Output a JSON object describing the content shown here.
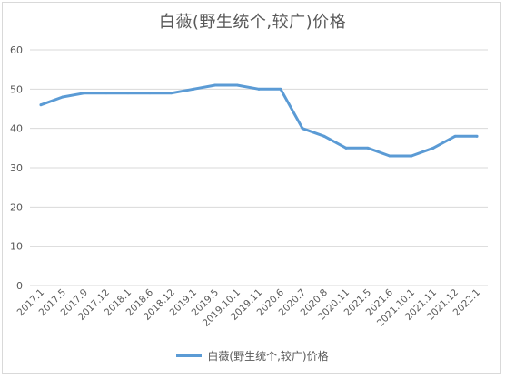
{
  "chart_data": {
    "type": "line",
    "title": "白薇(野生统个,较广)价格",
    "categories": [
      "2017.1",
      "2017.5",
      "2017.9",
      "2017.12",
      "2018.1",
      "2018.6",
      "2018.12",
      "2019.1",
      "2019.5",
      "2019.10.1",
      "2019.11",
      "2020.6",
      "2020.7",
      "2020.8",
      "2020.11",
      "2021.5",
      "2021.6",
      "2021.10.1",
      "2021.11",
      "2021.12",
      "2022.1"
    ],
    "series": [
      {
        "name": "白薇(野生统个,较广)价格",
        "values": [
          46,
          48,
          49,
          49,
          49,
          49,
          49,
          50,
          51,
          51,
          50,
          50,
          40,
          38,
          35,
          35,
          33,
          33,
          35,
          38,
          38
        ],
        "color": "#5b9bd5"
      }
    ],
    "ylim": [
      0,
      60
    ],
    "yticks": [
      0,
      10,
      20,
      30,
      40,
      50,
      60
    ],
    "grid": true,
    "legend": "bottom",
    "xlabel": "",
    "ylabel": ""
  }
}
